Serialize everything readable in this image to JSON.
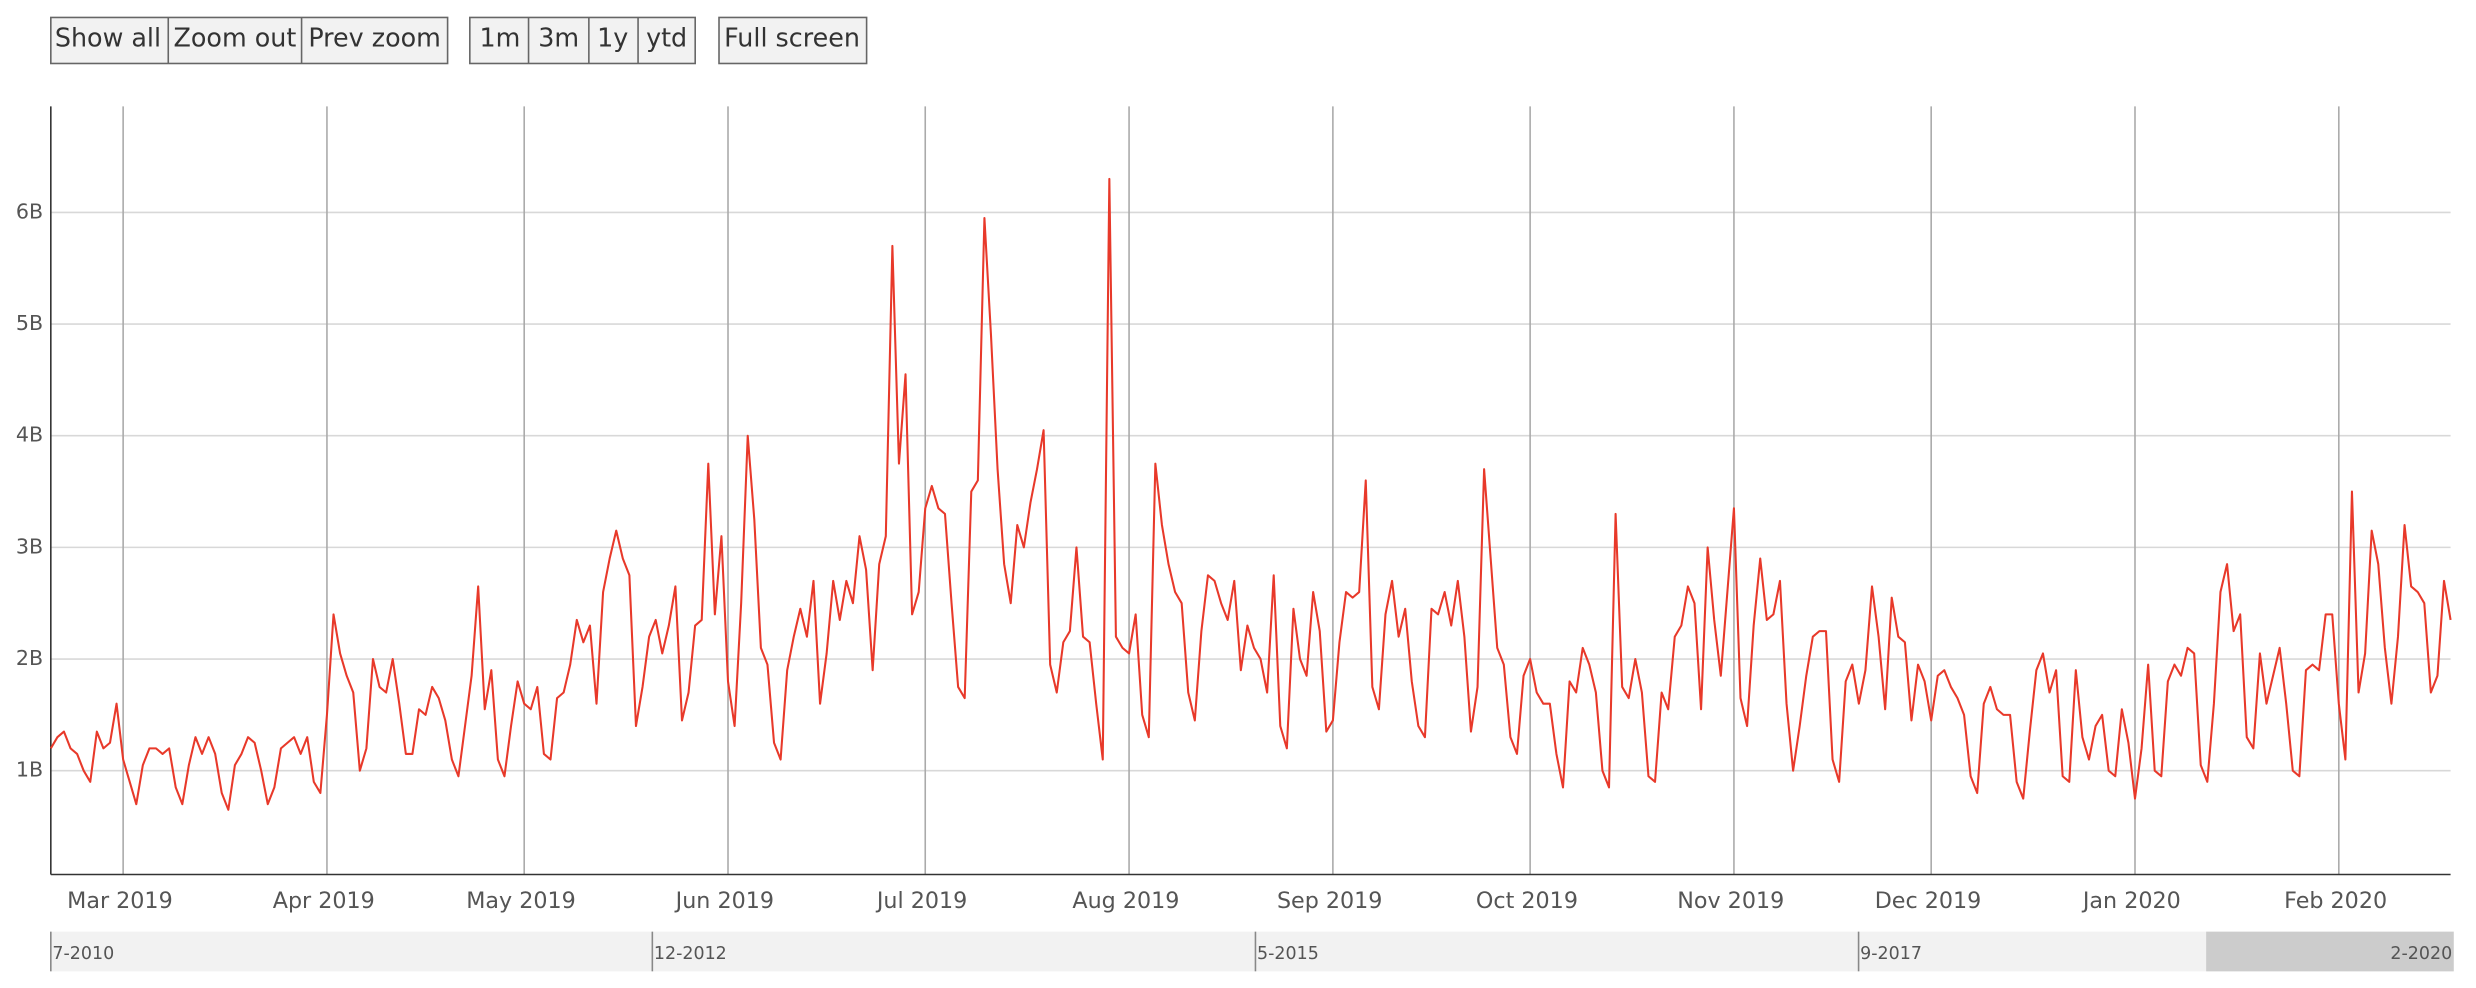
{
  "toolbar": {
    "zoom_buttons": [
      "Show all",
      "Zoom out",
      "Prev zoom"
    ],
    "range_buttons": [
      "1m",
      "3m",
      "1y",
      "ytd"
    ],
    "fullscreen_button": "Full screen"
  },
  "chart_data": {
    "type": "line",
    "color": "#e8392a",
    "grid": true,
    "ylim": [
      0.07,
      6.95
    ],
    "yticks": [
      {
        "value": 1,
        "label": "1B"
      },
      {
        "value": 2,
        "label": "2B"
      },
      {
        "value": 3,
        "label": "3B"
      },
      {
        "value": 4,
        "label": "4B"
      },
      {
        "value": 5,
        "label": "5B"
      },
      {
        "value": 6,
        "label": "6B"
      }
    ],
    "categories": [
      null,
      null,
      null,
      null,
      null,
      null,
      null,
      null,
      null,
      null,
      null,
      "Mar 2019",
      null,
      null,
      null,
      null,
      null,
      null,
      null,
      null,
      null,
      null,
      null,
      null,
      null,
      null,
      null,
      null,
      null,
      null,
      null,
      null,
      null,
      null,
      null,
      null,
      null,
      null,
      null,
      null,
      null,
      null,
      "Apr 2019",
      null,
      null,
      null,
      null,
      null,
      null,
      null,
      null,
      null,
      null,
      null,
      null,
      null,
      null,
      null,
      null,
      null,
      null,
      null,
      null,
      null,
      null,
      null,
      null,
      null,
      null,
      null,
      null,
      null,
      "May 2019",
      null,
      null,
      null,
      null,
      null,
      null,
      null,
      null,
      null,
      null,
      null,
      null,
      null,
      null,
      null,
      null,
      null,
      null,
      null,
      null,
      null,
      null,
      null,
      null,
      null,
      null,
      null,
      null,
      null,
      null,
      "Jun 2019",
      null,
      null,
      null,
      null,
      null,
      null,
      null,
      null,
      null,
      null,
      null,
      null,
      null,
      null,
      null,
      null,
      null,
      null,
      null,
      null,
      null,
      null,
      null,
      null,
      null,
      null,
      null,
      null,
      null,
      "Jul 2019",
      null,
      null,
      null,
      null,
      null,
      null,
      null,
      null,
      null,
      null,
      null,
      null,
      null,
      null,
      null,
      null,
      null,
      null,
      null,
      null,
      null,
      null,
      null,
      null,
      null,
      null,
      null,
      null,
      null,
      null,
      "Aug 2019",
      null,
      null,
      null,
      null,
      null,
      null,
      null,
      null,
      null,
      null,
      null,
      null,
      null,
      null,
      null,
      null,
      null,
      null,
      null,
      null,
      null,
      null,
      null,
      null,
      null,
      null,
      null,
      null,
      null,
      null,
      "Sep 2019",
      null,
      null,
      null,
      null,
      null,
      null,
      null,
      null,
      null,
      null,
      null,
      null,
      null,
      null,
      null,
      null,
      null,
      null,
      null,
      null,
      null,
      null,
      null,
      null,
      null,
      null,
      null,
      null,
      null,
      "Oct 2019",
      null,
      null,
      null,
      null,
      null,
      null,
      null,
      null,
      null,
      null,
      null,
      null,
      null,
      null,
      null,
      null,
      null,
      null,
      null,
      null,
      null,
      null,
      null,
      null,
      null,
      null,
      null,
      null,
      null,
      null,
      "Nov 2019",
      null,
      null,
      null,
      null,
      null,
      null,
      null,
      null,
      null,
      null,
      null,
      null,
      null,
      null,
      null,
      null,
      null,
      null,
      null,
      null,
      null,
      null,
      null,
      null,
      null,
      null,
      null,
      null,
      null,
      "Dec 2019",
      null,
      null,
      null,
      null,
      null,
      null,
      null,
      null,
      null,
      null,
      null,
      null,
      null,
      null,
      null,
      null,
      null,
      null,
      null,
      null,
      null,
      null,
      null,
      null,
      null,
      null,
      null,
      null,
      null,
      null,
      "Jan 2020",
      null,
      null,
      null,
      null,
      null,
      null,
      null,
      null,
      null,
      null,
      null,
      null,
      null,
      null,
      null,
      null,
      null,
      null,
      null,
      null,
      null,
      null,
      null,
      null,
      null,
      null,
      null,
      null,
      null,
      null,
      "Feb 2020",
      null,
      null,
      null,
      null,
      null,
      null,
      null,
      null,
      null,
      null,
      null,
      null,
      null,
      null,
      null,
      null,
      null
    ],
    "values": [
      1.2,
      1.3,
      1.35,
      1.2,
      1.15,
      1.0,
      0.9,
      1.35,
      1.2,
      1.25,
      1.6,
      1.1,
      0.9,
      0.7,
      1.05,
      1.2,
      1.2,
      1.15,
      1.2,
      0.85,
      0.7,
      1.05,
      1.3,
      1.15,
      1.3,
      1.15,
      0.8,
      0.65,
      1.05,
      1.15,
      1.3,
      1.25,
      1.0,
      0.7,
      0.85,
      1.2,
      1.25,
      1.3,
      1.15,
      1.3,
      0.9,
      0.8,
      1.5,
      2.4,
      2.05,
      1.85,
      1.7,
      1.0,
      1.2,
      2.0,
      1.75,
      1.7,
      2.0,
      1.6,
      1.15,
      1.15,
      1.55,
      1.5,
      1.75,
      1.65,
      1.45,
      1.1,
      0.95,
      1.4,
      1.85,
      2.65,
      1.55,
      1.9,
      1.1,
      0.95,
      1.4,
      1.8,
      1.6,
      1.55,
      1.75,
      1.15,
      1.1,
      1.65,
      1.7,
      1.95,
      2.35,
      2.15,
      2.3,
      1.6,
      2.6,
      2.9,
      3.15,
      2.9,
      2.75,
      1.4,
      1.75,
      2.2,
      2.35,
      2.05,
      2.3,
      2.65,
      1.45,
      1.7,
      2.3,
      2.35,
      3.75,
      2.4,
      3.1,
      1.8,
      1.4,
      2.5,
      4.0,
      3.25,
      2.1,
      1.95,
      1.25,
      1.1,
      1.9,
      2.2,
      2.45,
      2.2,
      2.7,
      1.6,
      2.05,
      2.7,
      2.35,
      2.7,
      2.5,
      3.1,
      2.8,
      1.9,
      2.85,
      3.1,
      5.7,
      3.75,
      4.55,
      2.4,
      2.6,
      3.35,
      3.55,
      3.35,
      3.3,
      2.5,
      1.75,
      1.65,
      3.5,
      3.6,
      5.95,
      4.9,
      3.7,
      2.85,
      2.5,
      3.2,
      3.0,
      3.4,
      3.7,
      4.05,
      1.95,
      1.7,
      2.15,
      2.25,
      3.0,
      2.2,
      2.15,
      1.6,
      1.1,
      6.3,
      2.2,
      2.1,
      2.05,
      2.4,
      1.5,
      1.3,
      3.75,
      3.2,
      2.85,
      2.6,
      2.5,
      1.7,
      1.45,
      2.25,
      2.75,
      2.7,
      2.5,
      2.35,
      2.7,
      1.9,
      2.3,
      2.1,
      2.0,
      1.7,
      2.75,
      1.4,
      1.2,
      2.45,
      2.0,
      1.85,
      2.6,
      2.25,
      1.35,
      1.45,
      2.15,
      2.6,
      2.55,
      2.6,
      3.6,
      1.75,
      1.55,
      2.4,
      2.7,
      2.2,
      2.45,
      1.8,
      1.4,
      1.3,
      2.45,
      2.4,
      2.6,
      2.3,
      2.7,
      2.2,
      1.35,
      1.75,
      3.7,
      2.9,
      2.1,
      1.95,
      1.3,
      1.15,
      1.85,
      2.0,
      1.7,
      1.6,
      1.6,
      1.15,
      0.85,
      1.8,
      1.7,
      2.1,
      1.95,
      1.7,
      1.0,
      0.85,
      3.3,
      1.75,
      1.65,
      2.0,
      1.7,
      0.95,
      0.9,
      1.7,
      1.55,
      2.2,
      2.3,
      2.65,
      2.5,
      1.55,
      3.0,
      2.35,
      1.85,
      2.6,
      3.35,
      1.65,
      1.4,
      2.3,
      2.9,
      2.35,
      2.4,
      2.7,
      1.6,
      1.0,
      1.4,
      1.85,
      2.2,
      2.25,
      2.25,
      1.1,
      0.9,
      1.8,
      1.95,
      1.6,
      1.9,
      2.65,
      2.2,
      1.55,
      2.55,
      2.2,
      2.15,
      1.45,
      1.95,
      1.8,
      1.45,
      1.85,
      1.9,
      1.75,
      1.65,
      1.5,
      0.95,
      0.8,
      1.6,
      1.75,
      1.55,
      1.5,
      1.5,
      0.9,
      0.75,
      1.35,
      1.9,
      2.05,
      1.7,
      1.9,
      0.95,
      0.9,
      1.9,
      1.3,
      1.1,
      1.4,
      1.5,
      1.0,
      0.95,
      1.55,
      1.25,
      0.75,
      1.2,
      1.95,
      1.0,
      0.95,
      1.8,
      1.95,
      1.85,
      2.1,
      2.05,
      1.05,
      0.9,
      1.6,
      2.6,
      2.85,
      2.25,
      2.4,
      1.3,
      1.2,
      2.05,
      1.6,
      1.85,
      2.1,
      1.6,
      1.0,
      0.95,
      1.9,
      1.95,
      1.9,
      2.4,
      2.4,
      1.6,
      1.1,
      3.5,
      1.7,
      2.05,
      3.15,
      2.85,
      2.1,
      1.6,
      2.2,
      3.2,
      2.65,
      2.6,
      2.5,
      1.7,
      1.85,
      2.7,
      2.35
    ]
  },
  "navigator": {
    "labels": [
      "7-2010",
      "12-2012",
      "5-2015",
      "9-2017",
      "2-2020"
    ]
  }
}
